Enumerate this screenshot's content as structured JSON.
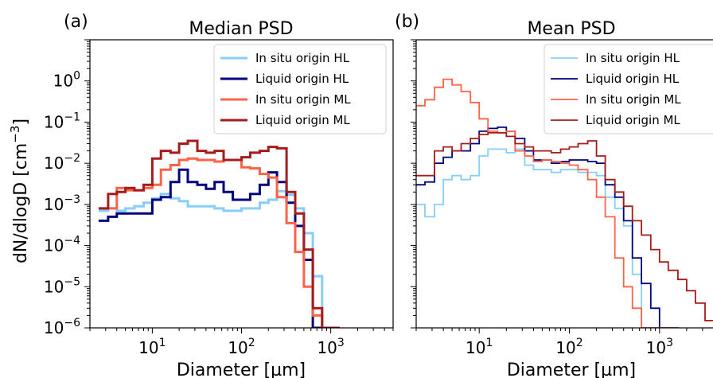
{
  "figure": {
    "ylabel": "dN/dlogD [cm$^{-3}$]",
    "ylabel_main": "dN/dlogD [cm",
    "ylabel_exp": "−3",
    "ylabel_close": "]"
  },
  "colors": {
    "insitu_HL": "#87cefa",
    "liquid_HL": "#00007f",
    "insitu_ML": "#ff6347",
    "liquid_ML": "#a51c1c"
  },
  "chart_data": [
    {
      "type": "line",
      "panel_label": "(a)",
      "title": "Median PSD",
      "xlabel": "Diameter [µm]",
      "xscale": "log",
      "yscale": "log",
      "xlim": [
        2,
        5000
      ],
      "ylim": [
        1e-06,
        10
      ],
      "xticks": [
        {
          "value": 10,
          "mantissa": "10",
          "exp": "1"
        },
        {
          "value": 100,
          "mantissa": "10",
          "exp": "2"
        },
        {
          "value": 1000,
          "mantissa": "10",
          "exp": "3"
        }
      ],
      "yticks": [
        {
          "value": 1,
          "mantissa": "10",
          "exp": "0"
        },
        {
          "value": 0.1,
          "mantissa": "10",
          "exp": "−1"
        },
        {
          "value": 0.01,
          "mantissa": "10",
          "exp": "−2"
        },
        {
          "value": 0.001,
          "mantissa": "10",
          "exp": "−3"
        },
        {
          "value": 0.0001,
          "mantissa": "10",
          "exp": "−4"
        },
        {
          "value": 1e-05,
          "mantissa": "10",
          "exp": "−5"
        },
        {
          "value": 1e-06,
          "mantissa": "10",
          "exp": "−6"
        }
      ],
      "legend_position": "top-right",
      "series": [
        {
          "name": "In situ origin HL",
          "color_key": "insitu_HL",
          "width": 3,
          "x": [
            2.5,
            3.2,
            4,
            5,
            6.3,
            8,
            10,
            12.5,
            16,
            20,
            25,
            32,
            40,
            50,
            63,
            80,
            100,
            125,
            160,
            200,
            250,
            320,
            400,
            500,
            630,
            800,
            1000
          ],
          "y": [
            0.0007,
            0.0008,
            0.0007,
            0.0008,
            0.0009,
            0.0011,
            0.0014,
            0.0018,
            0.0014,
            0.0012,
            0.0009,
            0.0009,
            0.0009,
            0.0008,
            0.0007,
            0.0007,
            0.0008,
            0.0008,
            0.0011,
            0.0013,
            0.0021,
            0.0017,
            0.0008,
            0.0002,
            1.8e-05,
            1e-06,
            1e-06
          ]
        },
        {
          "name": "Liquid origin HL",
          "color_key": "liquid_HL",
          "width": 3,
          "x": [
            2.5,
            3.2,
            4,
            5,
            6.3,
            8,
            10,
            12.5,
            16,
            20,
            25,
            32,
            40,
            50,
            63,
            80,
            100,
            125,
            160,
            200,
            250,
            320,
            400,
            500,
            630,
            800,
            1000
          ],
          "y": [
            0.0004,
            0.0005,
            0.0006,
            0.0006,
            0.0006,
            0.0006,
            0.0013,
            0.0015,
            0.0035,
            0.007,
            0.0035,
            0.003,
            0.0024,
            0.0035,
            0.002,
            0.0013,
            0.0013,
            0.0018,
            0.003,
            0.006,
            0.0035,
            0.0011,
            0.0003,
            4.5e-05,
            1e-06,
            1e-06,
            1e-06
          ]
        },
        {
          "name": "In situ origin ML",
          "color_key": "insitu_ML",
          "width": 3,
          "x": [
            2.5,
            3.2,
            4,
            5,
            6.3,
            8,
            10,
            12.5,
            16,
            20,
            25,
            32,
            40,
            50,
            63,
            80,
            100,
            125,
            160,
            200,
            250,
            320,
            400,
            500,
            630,
            800,
            1000
          ],
          "y": [
            0.0008,
            0.0008,
            0.0025,
            0.0022,
            0.0022,
            0.0025,
            0.003,
            0.007,
            0.009,
            0.012,
            0.013,
            0.012,
            0.012,
            0.011,
            0.012,
            0.012,
            0.008,
            0.0075,
            0.0055,
            0.0045,
            0.0015,
            0.00035,
            7e-05,
            1e-05,
            2e-06,
            1e-06,
            1e-06
          ]
        },
        {
          "name": "Liquid origin ML",
          "color_key": "liquid_ML",
          "width": 3,
          "x": [
            2.5,
            3.2,
            4,
            5,
            6.3,
            8,
            10,
            12.5,
            16,
            20,
            25,
            32,
            40,
            50,
            63,
            80,
            100,
            125,
            160,
            200,
            250,
            320,
            400,
            500,
            630,
            800,
            1000
          ],
          "y": [
            0.0008,
            0.0018,
            0.002,
            0.0025,
            0.0022,
            0.003,
            0.013,
            0.02,
            0.018,
            0.03,
            0.035,
            0.02,
            0.018,
            0.02,
            0.012,
            0.012,
            0.014,
            0.018,
            0.02,
            0.025,
            0.023,
            0.002,
            0.0006,
            8e-05,
            3e-06,
            1e-06,
            1e-06
          ]
        }
      ]
    },
    {
      "type": "line",
      "panel_label": "(b)",
      "title": "Mean PSD",
      "xlabel": "Diameter [µm]",
      "xscale": "log",
      "yscale": "log",
      "xlim": [
        2,
        5000
      ],
      "ylim": [
        1e-06,
        10
      ],
      "xticks": [
        {
          "value": 10,
          "mantissa": "10",
          "exp": "1"
        },
        {
          "value": 100,
          "mantissa": "10",
          "exp": "2"
        },
        {
          "value": 1000,
          "mantissa": "10",
          "exp": "3"
        }
      ],
      "legend_position": "top-right",
      "series": [
        {
          "name": "In situ origin HL",
          "color_key": "insitu_HL",
          "width": 1.8,
          "x": [
            2,
            2.5,
            3.2,
            4,
            5,
            6.3,
            8,
            10,
            12.5,
            16,
            20,
            25,
            32,
            40,
            50,
            63,
            80,
            100,
            125,
            160,
            200,
            250,
            320,
            400,
            500,
            630,
            800,
            1000
          ],
          "y": [
            0.001,
            0.0005,
            0.001,
            0.004,
            0.005,
            0.004,
            0.005,
            0.015,
            0.022,
            0.022,
            0.018,
            0.022,
            0.009,
            0.007,
            0.007,
            0.006,
            0.007,
            0.007,
            0.006,
            0.006,
            0.005,
            0.0015,
            0.0008,
            0.0003,
            2e-05,
            1e-06,
            1e-06,
            1e-06
          ]
        },
        {
          "name": "Liquid origin HL",
          "color_key": "liquid_HL",
          "width": 1.8,
          "x": [
            2,
            2.5,
            3.2,
            4,
            5,
            6.3,
            8,
            10,
            12.5,
            16,
            20,
            25,
            32,
            40,
            50,
            63,
            80,
            100,
            125,
            160,
            200,
            250,
            320,
            400,
            500,
            630,
            800,
            1000,
            1300
          ],
          "y": [
            0.003,
            0.0035,
            0.01,
            0.014,
            0.02,
            0.02,
            0.03,
            0.06,
            0.07,
            0.075,
            0.06,
            0.04,
            0.02,
            0.012,
            0.012,
            0.01,
            0.011,
            0.012,
            0.012,
            0.011,
            0.01,
            0.003,
            0.0015,
            0.0004,
            5e-05,
            1.2e-05,
            3e-06,
            1e-06,
            1e-06
          ]
        },
        {
          "name": "In situ origin ML",
          "color_key": "insitu_ML",
          "width": 1.8,
          "x": [
            2,
            2.5,
            3.2,
            4,
            5,
            6.3,
            8,
            10,
            12.5,
            16,
            20,
            25,
            32,
            40,
            50,
            63,
            80,
            100,
            125,
            160,
            200,
            250,
            320,
            400,
            500,
            630,
            800,
            1000,
            1300
          ],
          "y": [
            0.25,
            0.35,
            0.7,
            1.1,
            0.8,
            0.55,
            0.3,
            0.12,
            0.06,
            0.055,
            0.06,
            0.02,
            0.015,
            0.011,
            0.012,
            0.011,
            0.01,
            0.009,
            0.007,
            0.004,
            0.0015,
            0.0005,
            5e-05,
            1e-05,
            3e-06,
            1e-06,
            1e-06,
            1e-06,
            1e-06
          ]
        },
        {
          "name": "Liquid origin ML",
          "color_key": "liquid_ML",
          "width": 1.8,
          "x": [
            2,
            2.5,
            3.2,
            4,
            5,
            6.3,
            8,
            10,
            12.5,
            16,
            20,
            25,
            32,
            40,
            50,
            63,
            80,
            100,
            125,
            160,
            200,
            250,
            320,
            400,
            500,
            630,
            800,
            1000,
            1250,
            1600,
            2000,
            2500,
            3200,
            4000
          ],
          "y": [
            0.005,
            0.005,
            0.02,
            0.025,
            0.02,
            0.03,
            0.04,
            0.05,
            0.055,
            0.055,
            0.045,
            0.03,
            0.025,
            0.02,
            0.02,
            0.018,
            0.022,
            0.025,
            0.03,
            0.035,
            0.015,
            0.004,
            0.002,
            0.0009,
            0.0004,
            0.00018,
            8e-05,
            4e-05,
            2.5e-05,
            1.5e-05,
            8e-06,
            4e-06,
            1.5e-06,
            1e-06
          ]
        }
      ]
    }
  ]
}
